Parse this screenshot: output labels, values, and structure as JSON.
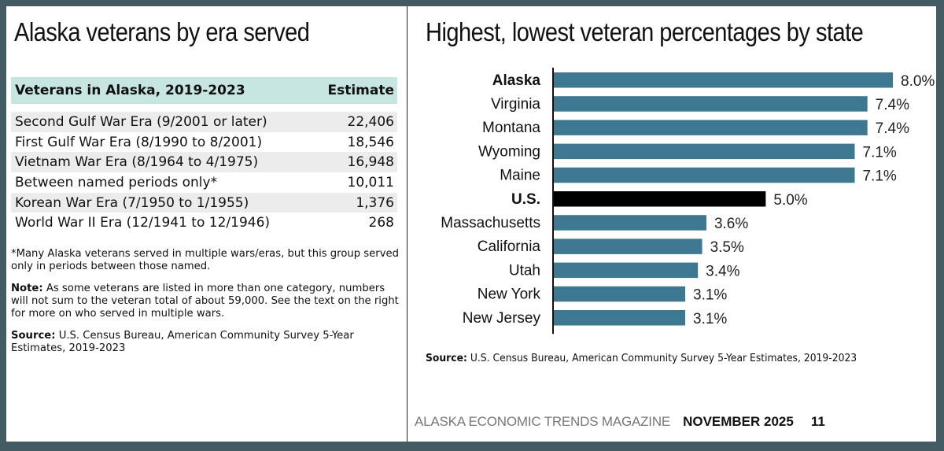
{
  "left_panel": {
    "title": "Alaska veterans by era served",
    "table": {
      "header": {
        "label": "Veterans in Alaska, 2019-2023",
        "value": "Estimate"
      },
      "rows": [
        {
          "label": "Second Gulf War Era (9/2001 or later)",
          "value": "22,406"
        },
        {
          "label": "First Gulf War Era (8/1990 to 8/2001)",
          "value": "18,546"
        },
        {
          "label": "Vietnam War Era (8/1964 to 4/1975)",
          "value": "16,948"
        },
        {
          "label": "Between named periods only*",
          "value": "10,011"
        },
        {
          "label": "Korean War Era (7/1950 to 1/1955)",
          "value": "1,376"
        },
        {
          "label": "World War II Era (12/1941 to 12/1946)",
          "value": "268"
        }
      ]
    },
    "footnote": "*Many Alaska veterans served in multiple wars/eras, but this group served only in periods between those named.",
    "note_label": "Note:",
    "note_text": " As some veterans are listed in more than one category, numbers will not sum to the veteran total of about 59,000. See the text on the right for more on who served in multiple wars.",
    "source_label": "Source:",
    "source_text": " U.S. Census Bureau, American Community Survey 5-Year Estimates, 2019-2023"
  },
  "right_panel": {
    "title": "Highest, lowest veteran percentages by state",
    "source_label": "Source:",
    "source_text": " U.S. Census Bureau, American Community Survey 5-Year Estimates, 2019-2023"
  },
  "footer": {
    "magazine": "ALASKA ECONOMIC TRENDS MAGAZINE",
    "issue": "NOVEMBER 2025",
    "page": "11"
  },
  "chart_data": {
    "type": "bar",
    "orientation": "horizontal",
    "title": "Highest, lowest veteran percentages by state",
    "xlabel": "",
    "ylabel": "",
    "xlim": [
      0,
      8.0
    ],
    "grid": false,
    "categories": [
      "Alaska",
      "Virginia",
      "Montana",
      "Wyoming",
      "Maine",
      "U.S.",
      "Massachusetts",
      "California",
      "Utah",
      "New York",
      "New Jersey"
    ],
    "values": [
      8.0,
      7.4,
      7.4,
      7.1,
      7.1,
      5.0,
      3.6,
      3.5,
      3.4,
      3.1,
      3.1
    ],
    "value_labels": [
      "8.0%",
      "7.4%",
      "7.4%",
      "7.1%",
      "7.1%",
      "5.0%",
      "3.6%",
      "3.5%",
      "3.4%",
      "3.1%",
      "3.1%"
    ],
    "bold_categories": [
      "Alaska",
      "U.S."
    ],
    "colors": {
      "default": "#3d7890",
      "highlight": "#000000"
    },
    "highlight_categories": [
      "U.S."
    ]
  }
}
